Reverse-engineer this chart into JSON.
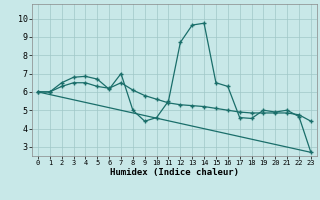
{
  "xlabel": "Humidex (Indice chaleur)",
  "xlim": [
    -0.5,
    23.5
  ],
  "ylim": [
    2.5,
    10.8
  ],
  "yticks": [
    3,
    4,
    5,
    6,
    7,
    8,
    9,
    10
  ],
  "xticks": [
    0,
    1,
    2,
    3,
    4,
    5,
    6,
    7,
    8,
    9,
    10,
    11,
    12,
    13,
    14,
    15,
    16,
    17,
    18,
    19,
    20,
    21,
    22,
    23
  ],
  "bg_color": "#c8e8e8",
  "grid_color": "#a0c8c8",
  "line_color": "#1a6e6a",
  "line1_x": [
    0,
    1,
    2,
    3,
    4,
    5,
    6,
    7,
    8,
    9,
    10,
    11,
    12,
    13,
    14,
    15,
    16,
    17,
    18,
    19,
    20,
    21,
    22,
    23
  ],
  "line1_y": [
    6.0,
    6.0,
    6.5,
    6.8,
    6.85,
    6.7,
    6.15,
    7.0,
    5.0,
    4.4,
    4.6,
    5.5,
    8.7,
    9.65,
    9.75,
    6.5,
    6.3,
    4.6,
    4.55,
    5.0,
    4.9,
    5.0,
    4.65,
    2.7
  ],
  "line2_x": [
    0,
    1,
    2,
    3,
    4,
    5,
    6,
    7,
    8,
    9,
    10,
    11,
    12,
    13,
    14,
    15,
    16,
    17,
    18,
    19,
    20,
    21,
    22,
    23
  ],
  "line2_y": [
    6.0,
    6.0,
    6.3,
    6.5,
    6.5,
    6.3,
    6.2,
    6.5,
    6.1,
    5.8,
    5.6,
    5.4,
    5.3,
    5.25,
    5.2,
    5.1,
    5.0,
    4.9,
    4.85,
    4.85,
    4.85,
    4.85,
    4.75,
    4.4
  ],
  "line3_x": [
    0,
    23
  ],
  "line3_y": [
    6.0,
    2.7
  ]
}
